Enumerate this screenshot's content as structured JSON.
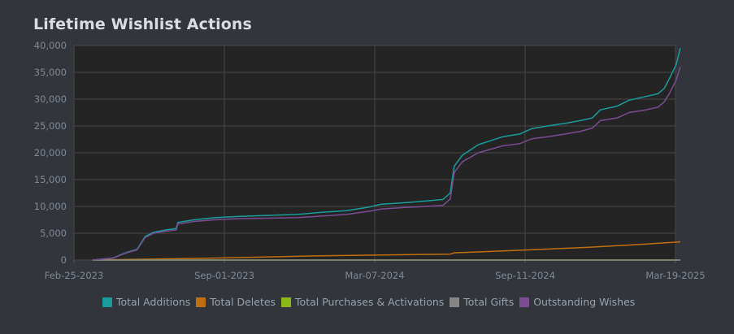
{
  "title": "Lifetime Wishlist Actions",
  "chart_data": {
    "type": "line",
    "title": "Lifetime Wishlist Actions",
    "xlabel": "",
    "ylabel": "",
    "x_tick_labels": [
      "Feb-25-2023",
      "Sep-01-2023",
      "Mar-07-2024",
      "Sep-11-2024",
      "Mar-19-2025"
    ],
    "y_tick_labels": [
      "0",
      "5,000",
      "10,000",
      "15,000",
      "20,000",
      "25,000",
      "30,000",
      "35,000",
      "40,000"
    ],
    "xlim": [
      "2023-02-25",
      "2025-03-19"
    ],
    "ylim": [
      0,
      40000
    ],
    "grid": true,
    "legend_position": "bottom",
    "series": [
      {
        "name": "Total Additions",
        "color": "#1a9c9c",
        "points": [
          [
            "2023-03-20",
            0
          ],
          [
            "2023-04-15",
            400
          ],
          [
            "2023-05-01",
            1400
          ],
          [
            "2023-05-15",
            2000
          ],
          [
            "2023-05-25",
            4400
          ],
          [
            "2023-06-05",
            5200
          ],
          [
            "2023-06-20",
            5600
          ],
          [
            "2023-07-03",
            5900
          ],
          [
            "2023-07-05",
            7000
          ],
          [
            "2023-07-25",
            7500
          ],
          [
            "2023-08-20",
            7900
          ],
          [
            "2023-09-15",
            8100
          ],
          [
            "2023-10-20",
            8300
          ],
          [
            "2023-12-01",
            8500
          ],
          [
            "2024-01-01",
            8900
          ],
          [
            "2024-02-01",
            9200
          ],
          [
            "2024-03-01",
            9900
          ],
          [
            "2024-03-15",
            10400
          ],
          [
            "2024-04-15",
            10700
          ],
          [
            "2024-05-10",
            11000
          ],
          [
            "2024-06-01",
            11300
          ],
          [
            "2024-06-10",
            12500
          ],
          [
            "2024-06-15",
            17500
          ],
          [
            "2024-06-25",
            19500
          ],
          [
            "2024-07-15",
            21500
          ],
          [
            "2024-08-15",
            23000
          ],
          [
            "2024-09-05",
            23500
          ],
          [
            "2024-09-20",
            24500
          ],
          [
            "2024-10-10",
            25000
          ],
          [
            "2024-11-01",
            25500
          ],
          [
            "2024-11-20",
            26000
          ],
          [
            "2024-12-05",
            26500
          ],
          [
            "2024-12-15",
            28000
          ],
          [
            "2025-01-05",
            28700
          ],
          [
            "2025-01-20",
            29800
          ],
          [
            "2025-02-10",
            30500
          ],
          [
            "2025-02-25",
            31000
          ],
          [
            "2025-03-05",
            32000
          ],
          [
            "2025-03-12",
            34000
          ],
          [
            "2025-03-20",
            36500
          ],
          [
            "2025-03-25",
            39500
          ]
        ]
      },
      {
        "name": "Total Deletes",
        "color": "#c06f10",
        "points": [
          [
            "2023-03-20",
            0
          ],
          [
            "2023-09-01",
            400
          ],
          [
            "2024-01-01",
            800
          ],
          [
            "2024-06-10",
            1100
          ],
          [
            "2024-06-15",
            1350
          ],
          [
            "2024-09-01",
            1800
          ],
          [
            "2024-12-01",
            2400
          ],
          [
            "2025-02-01",
            2900
          ],
          [
            "2025-03-25",
            3400
          ]
        ]
      },
      {
        "name": "Total Purchases & Activations",
        "color": "#8cb817",
        "points": [
          [
            "2023-03-20",
            0
          ],
          [
            "2025-03-25",
            0
          ]
        ]
      },
      {
        "name": "Total Gifts",
        "color": "#858585",
        "points": [
          [
            "2023-03-20",
            0
          ],
          [
            "2025-03-25",
            0
          ]
        ]
      },
      {
        "name": "Outstanding Wishes",
        "color": "#7a4d91",
        "points": [
          [
            "2023-03-20",
            0
          ],
          [
            "2023-04-15",
            380
          ],
          [
            "2023-05-01",
            1300
          ],
          [
            "2023-05-15",
            1900
          ],
          [
            "2023-05-25",
            4200
          ],
          [
            "2023-06-05",
            5000
          ],
          [
            "2023-06-20",
            5400
          ],
          [
            "2023-07-03",
            5600
          ],
          [
            "2023-07-05",
            6700
          ],
          [
            "2023-07-25",
            7200
          ],
          [
            "2023-08-20",
            7500
          ],
          [
            "2023-09-15",
            7700
          ],
          [
            "2023-10-20",
            7800
          ],
          [
            "2023-12-01",
            7900
          ],
          [
            "2024-01-01",
            8200
          ],
          [
            "2024-02-01",
            8500
          ],
          [
            "2024-03-01",
            9100
          ],
          [
            "2024-03-15",
            9500
          ],
          [
            "2024-04-15",
            9800
          ],
          [
            "2024-05-10",
            10000
          ],
          [
            "2024-06-01",
            10200
          ],
          [
            "2024-06-10",
            11400
          ],
          [
            "2024-06-15",
            16300
          ],
          [
            "2024-06-25",
            18300
          ],
          [
            "2024-07-15",
            20000
          ],
          [
            "2024-08-15",
            21300
          ],
          [
            "2024-09-05",
            21700
          ],
          [
            "2024-09-20",
            22600
          ],
          [
            "2024-10-10",
            23000
          ],
          [
            "2024-11-01",
            23500
          ],
          [
            "2024-11-20",
            24000
          ],
          [
            "2024-12-05",
            24600
          ],
          [
            "2024-12-15",
            26000
          ],
          [
            "2025-01-05",
            26500
          ],
          [
            "2025-01-20",
            27500
          ],
          [
            "2025-02-10",
            28000
          ],
          [
            "2025-02-25",
            28500
          ],
          [
            "2025-03-05",
            29500
          ],
          [
            "2025-03-12",
            31200
          ],
          [
            "2025-03-20",
            33600
          ],
          [
            "2025-03-25",
            36000
          ]
        ]
      }
    ]
  },
  "colors": {
    "background": "#32353c",
    "plot_background": "#242424",
    "grid": "#474747",
    "axis_text": "#808a94",
    "legend_text": "#9aa3ad"
  }
}
